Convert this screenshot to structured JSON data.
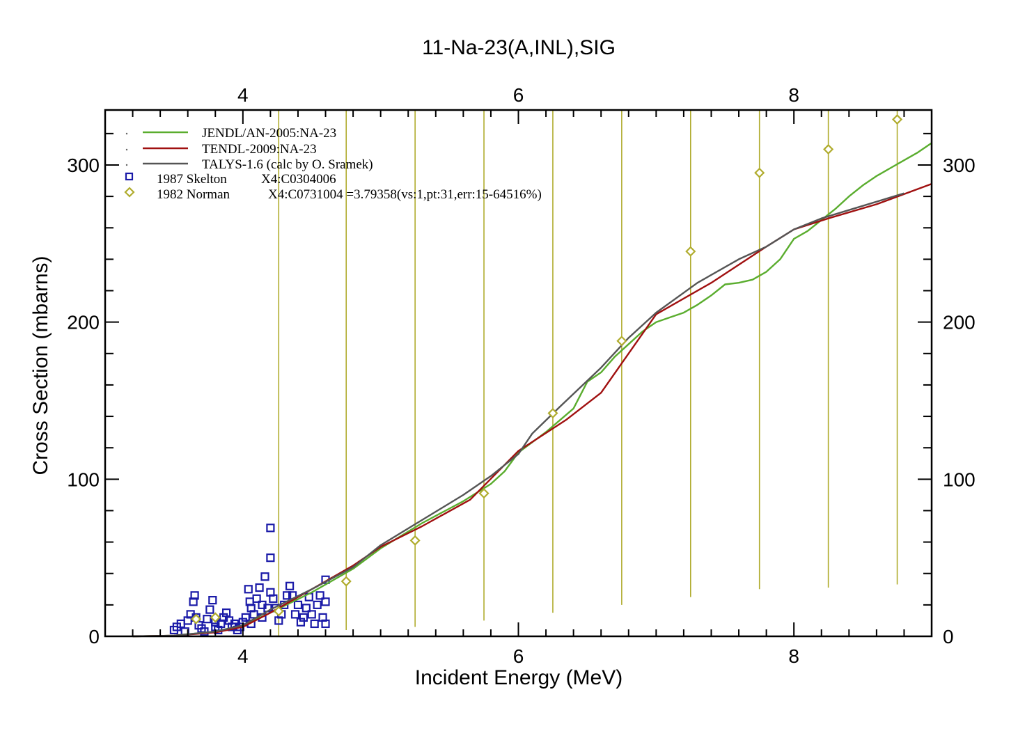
{
  "chart_data": {
    "type": "scatter",
    "title": "11-Na-23(A,INL),SIG",
    "xlabel": "Incident Energy (MeV)",
    "ylabel": "Cross Section (mbarns)",
    "xlim": [
      3.0,
      9.0
    ],
    "ylim": [
      0,
      335
    ],
    "x_ticks": [
      4,
      6,
      8
    ],
    "y_ticks": [
      0,
      100,
      200,
      300
    ],
    "grid": false,
    "legend_position": "top-left",
    "series": [
      {
        "name": "JENDL/AN-2005:NA-23",
        "kind": "line",
        "color": "#5aad2e",
        "x": [
          3.2,
          3.5,
          3.8,
          4.0,
          4.2,
          4.5,
          4.8,
          5.0,
          5.3,
          5.6,
          5.8,
          5.9,
          6.0,
          6.2,
          6.4,
          6.5,
          6.6,
          6.7,
          6.8,
          6.9,
          7.0,
          7.1,
          7.2,
          7.3,
          7.4,
          7.5,
          7.6,
          7.7,
          7.8,
          7.9,
          8.0,
          8.1,
          8.2,
          8.3,
          8.4,
          8.5,
          8.6,
          8.7,
          8.8,
          8.9,
          9.0
        ],
        "y": [
          0,
          0.5,
          3,
          7,
          15,
          28,
          43,
          56,
          72,
          86,
          97,
          105,
          117,
          130,
          145,
          162,
          168,
          178,
          186,
          194,
          200,
          203,
          206,
          211,
          217,
          224,
          225,
          227,
          232,
          240,
          253,
          258,
          265,
          272,
          280,
          287,
          293,
          298,
          303,
          308,
          314
        ]
      },
      {
        "name": "TENDL-2009:NA-23",
        "kind": "line",
        "color": "#a01010",
        "x": [
          3.2,
          3.5,
          3.8,
          4.0,
          4.2,
          4.5,
          4.8,
          5.0,
          5.3,
          5.65,
          6.0,
          6.35,
          6.6,
          7.0,
          7.4,
          7.8,
          8.0,
          8.25,
          8.6,
          9.0
        ],
        "y": [
          0,
          0.5,
          2.5,
          6,
          15,
          30,
          45,
          57,
          70,
          87,
          118,
          138,
          155,
          205,
          225,
          248,
          259,
          266,
          275,
          288
        ]
      },
      {
        "name": "TALYS-1.6 (calc by O. Sramek)",
        "kind": "line",
        "color": "#555555",
        "x": [
          3.2,
          3.5,
          3.8,
          4.0,
          4.2,
          4.5,
          4.8,
          5.0,
          5.3,
          5.6,
          5.8,
          6.0,
          6.1,
          6.3,
          6.6,
          6.8,
          7.0,
          7.3,
          7.6,
          7.8,
          8.0,
          8.2,
          8.5,
          8.8
        ],
        "y": [
          0,
          0.5,
          3,
          7,
          17,
          30,
          44,
          58,
          74,
          90,
          102,
          116,
          129,
          146,
          171,
          190,
          206,
          225,
          240,
          248,
          259,
          266,
          274,
          282
        ]
      },
      {
        "name": "1987 Skelton",
        "note": "X4:C0304006",
        "kind": "square",
        "color": "#1a1aa8",
        "x": [
          3.5,
          3.52,
          3.55,
          3.58,
          3.6,
          3.62,
          3.64,
          3.65,
          3.66,
          3.68,
          3.7,
          3.72,
          3.74,
          3.76,
          3.78,
          3.8,
          3.8,
          3.82,
          3.84,
          3.86,
          3.88,
          3.9,
          3.92,
          3.94,
          3.96,
          3.98,
          4.0,
          4.02,
          4.04,
          4.05,
          4.06,
          4.06,
          4.08,
          4.1,
          4.12,
          4.14,
          4.14,
          4.16,
          4.18,
          4.2,
          4.2,
          4.2,
          4.22,
          4.24,
          4.26,
          4.28,
          4.3,
          4.32,
          4.34,
          4.36,
          4.38,
          4.4,
          4.42,
          4.44,
          4.46,
          4.48,
          4.5,
          4.52,
          4.54,
          4.56,
          4.58,
          4.6,
          4.6,
          4.6
        ],
        "y": [
          4,
          6,
          8,
          3,
          10,
          14,
          22,
          26,
          12,
          7,
          5,
          3,
          11,
          17,
          23,
          9,
          6,
          4,
          8,
          12,
          15,
          10,
          6,
          8,
          4,
          6,
          9,
          12,
          30,
          22,
          18,
          8,
          14,
          24,
          31,
          20,
          12,
          38,
          18,
          69,
          50,
          28,
          24,
          18,
          10,
          14,
          20,
          26,
          32,
          26,
          14,
          20,
          9,
          12,
          18,
          25,
          14,
          8,
          20,
          26,
          12,
          36,
          22,
          8
        ]
      },
      {
        "name": "1982 Norman",
        "note": "X4:C0731004     =3.79358(vs:1,pt:31,err:15-64516%)",
        "kind": "diamond",
        "color": "#b0ac2e",
        "x": [
          3.66,
          3.8,
          4.26,
          4.75,
          5.25,
          5.75,
          6.25,
          6.75,
          7.25,
          7.75,
          8.25,
          8.75
        ],
        "y": [
          11,
          12,
          16,
          35,
          61,
          91,
          142,
          188,
          245,
          295,
          310,
          329
        ],
        "err_low": [
          0,
          0,
          0,
          4,
          6,
          10,
          15,
          20,
          25,
          30,
          31,
          33
        ],
        "err_high": [
          0,
          0,
          335,
          335,
          335,
          335,
          335,
          335,
          335,
          335,
          335,
          335
        ]
      }
    ]
  }
}
